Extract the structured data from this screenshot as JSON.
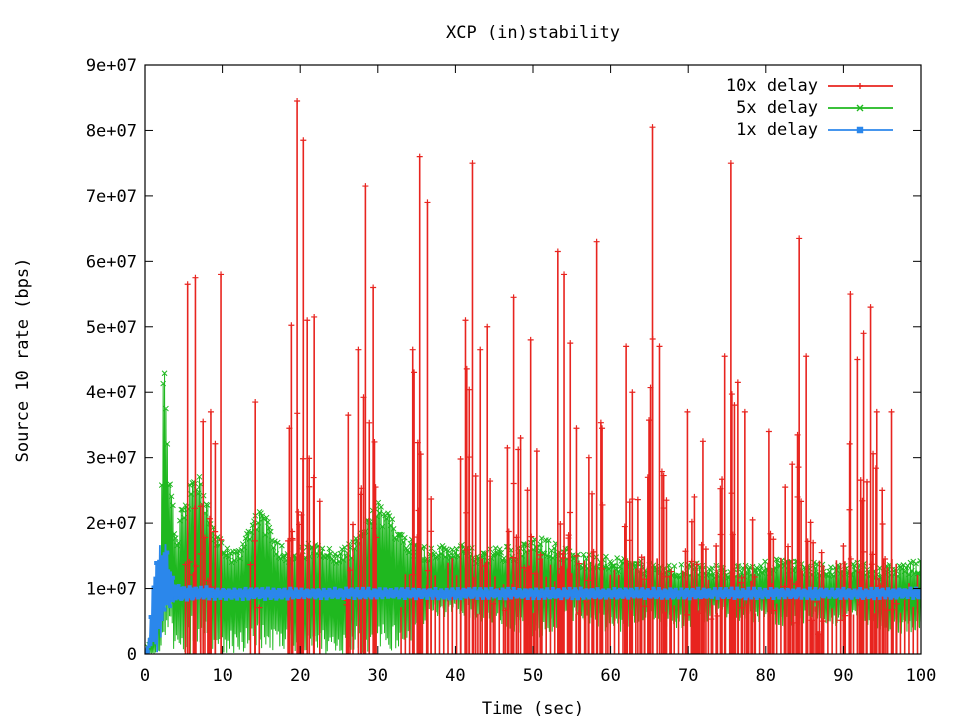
{
  "chart_data": {
    "type": "line",
    "title": "XCP (in)stability",
    "xlabel": "Time (sec)",
    "ylabel": "Source 10 rate (bps)",
    "xlim": [
      0,
      100
    ],
    "ylim": [
      0,
      90000000
    ],
    "x_ticks": [
      0,
      10,
      20,
      30,
      40,
      50,
      60,
      70,
      80,
      90,
      100
    ],
    "x_tick_labels": [
      "0",
      "10",
      "20",
      "30",
      "40",
      "50",
      "60",
      "70",
      "80",
      "90",
      "100"
    ],
    "y_ticks": [
      0,
      10000000,
      20000000,
      30000000,
      40000000,
      50000000,
      60000000,
      70000000,
      80000000,
      90000000
    ],
    "y_tick_labels": [
      "0",
      "1e+07",
      "2e+07",
      "3e+07",
      "4e+07",
      "5e+07",
      "6e+07",
      "7e+07",
      "8e+07",
      "9e+07"
    ],
    "legend_position": "top-right",
    "grid": false,
    "series": [
      {
        "name": "10x delay",
        "color": "#e8241f",
        "marker": "plus",
        "x": [
          5.5,
          6.5,
          7.5,
          8.5,
          9.8,
          14.2,
          18.6,
          19.6,
          20.4,
          20.9,
          21.8,
          26.2,
          27.5,
          28.4,
          29.4,
          34.5,
          35.4,
          36.4,
          41.3,
          42.2,
          43.2,
          44.1,
          46.7,
          47.5,
          48.4,
          49.7,
          50.5,
          53.2,
          54.0,
          54.8,
          55.6,
          57.2,
          58.2,
          58.9,
          62.0,
          62.8,
          64.8,
          65.4,
          66.3,
          67.2,
          69.9,
          70.8,
          71.9,
          73.6,
          74.7,
          75.5,
          76.4,
          77.3,
          78.3,
          80.4,
          82.5,
          83.4,
          84.3,
          85.2,
          86.1,
          87.2,
          90.0,
          90.9,
          91.8,
          92.6,
          93.5,
          94.3,
          95.0,
          96.2
        ],
        "y": [
          56500000,
          57500000,
          35500000,
          37000000,
          58000000,
          38500000,
          34500000,
          84500000,
          78500000,
          51000000,
          51500000,
          36500000,
          46500000,
          71500000,
          56000000,
          46500000,
          76000000,
          69000000,
          51000000,
          75000000,
          46500000,
          50000000,
          31500000,
          54500000,
          33000000,
          48000000,
          31000000,
          61500000,
          58000000,
          47500000,
          34500000,
          30000000,
          63000000,
          34500000,
          47000000,
          40000000,
          27000000,
          80500000,
          47000000,
          23500000,
          37000000,
          24000000,
          32500000,
          16500000,
          45500000,
          75000000,
          41500000,
          37000000,
          20500000,
          34000000,
          25500000,
          29000000,
          63500000,
          45500000,
          17000000,
          15500000,
          16500000,
          55000000,
          45000000,
          49000000,
          53000000,
          37000000,
          25000000,
          37000000
        ]
      },
      {
        "name": "5x delay",
        "color": "#1fb81f",
        "marker": "cross",
        "x": [
          0,
          1,
          2,
          2.4,
          3,
          3.5,
          4,
          5,
          6,
          6.7,
          7.5,
          8.5,
          10,
          12,
          14,
          15,
          17,
          19,
          21,
          23,
          25,
          27,
          29,
          30,
          31,
          33,
          35,
          37,
          40,
          43,
          46,
          49,
          51,
          53,
          56,
          59,
          62,
          65,
          68,
          71,
          74,
          77,
          80,
          83,
          86,
          89,
          92,
          95,
          98,
          100
        ],
        "y_upper": [
          0,
          3000000,
          12000000,
          46500000,
          28500000,
          26000000,
          18000000,
          24000000,
          27500000,
          28000000,
          26000000,
          21000000,
          17000000,
          16000000,
          22000000,
          22500000,
          17500000,
          16000000,
          17000000,
          16500000,
          16000000,
          17500000,
          21500000,
          23500000,
          22000000,
          19500000,
          17000000,
          16500000,
          17000000,
          16000000,
          16500000,
          17000000,
          18000000,
          17000000,
          15500000,
          15000000,
          14500000,
          14000000,
          13500000,
          14000000,
          13500000,
          13500000,
          14500000,
          14500000,
          14000000,
          14000000,
          14000000,
          13500000,
          14000000,
          14500000
        ],
        "y_lower": [
          0,
          0,
          0,
          0,
          0,
          0,
          0,
          0,
          0,
          0,
          0,
          0,
          0,
          0,
          0,
          0,
          0,
          0,
          0,
          0,
          0,
          0,
          0,
          0,
          0,
          0,
          2000000,
          5000000,
          6000000,
          5000000,
          4000000,
          2500000,
          2000000,
          3000000,
          5000000,
          3500000,
          3000000,
          5500000,
          3500000,
          4000000,
          6000000,
          4500000,
          5000000,
          3500000,
          5000000,
          4000000,
          5000000,
          3500000,
          3000000,
          3500000
        ]
      },
      {
        "name": "1x delay",
        "color": "#2b87eb",
        "marker": "square",
        "x": [
          0,
          0.5,
          1,
          1.5,
          2,
          2.5,
          3,
          3.5,
          4,
          5,
          7,
          10,
          15,
          20,
          30,
          40,
          50,
          60,
          70,
          80,
          90,
          100
        ],
        "y_upper": [
          0,
          3000000,
          12000000,
          15000000,
          17000000,
          18000000,
          15000000,
          12000000,
          11000000,
          10500000,
          10300000,
          10000000,
          10000000,
          10000000,
          10000000,
          10000000,
          10000000,
          10000000,
          10000000,
          10000000,
          10000000,
          10000000
        ],
        "y_lower": [
          0,
          0,
          0,
          0,
          2000000,
          4000000,
          6500000,
          7500000,
          8000000,
          8200000,
          8300000,
          8400000,
          8400000,
          8500000,
          8500000,
          8500000,
          8500000,
          8500000,
          8500000,
          8500000,
          8500000,
          8500000
        ]
      }
    ]
  }
}
